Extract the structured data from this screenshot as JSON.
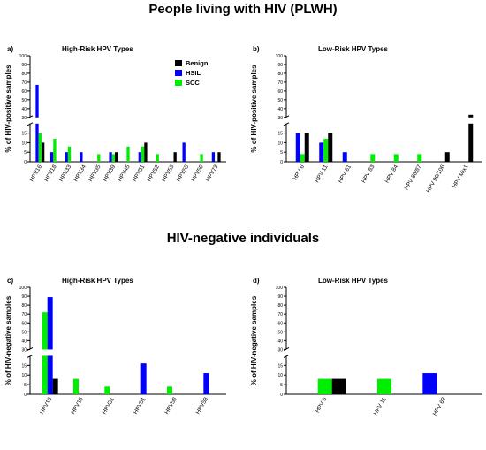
{
  "page": {
    "title_top": "People living with HIV (PLWH)",
    "title_bottom": "HIV-negative individuals"
  },
  "legend": [
    "Benign",
    "HSIL",
    "SCC"
  ],
  "colors": {
    "Benign": "#000000",
    "HSIL": "#0000ff",
    "SCC": "#00ee00"
  },
  "chart_data": [
    {
      "id": "a",
      "type": "bar",
      "panel_label": "a)",
      "title": "High-Risk HPV Types",
      "ylabel": "% of HIV-positive samples",
      "ylim": [
        0,
        100
      ],
      "y_break": [
        20,
        30
      ],
      "y_ticks_lower": [
        0,
        5,
        10,
        15
      ],
      "y_ticks_upper": [
        30,
        40,
        50,
        60,
        70,
        80,
        90,
        100
      ],
      "legend_position": "top-right",
      "categories": [
        "HPV16",
        "HPV18",
        "HPV33",
        "HPV34",
        "HPV35",
        "HPV39",
        "HPV45",
        "HPV51",
        "HPV52",
        "HPV53",
        "HPV58",
        "HPV59",
        "HPV73"
      ],
      "series": [
        {
          "name": "Benign",
          "values": [
            10,
            0,
            0,
            0,
            0,
            5,
            0,
            10,
            0,
            5,
            0,
            0,
            5
          ]
        },
        {
          "name": "HSIL",
          "values": [
            67,
            5,
            5,
            5,
            0,
            5,
            0,
            5,
            0,
            0,
            10,
            0,
            5
          ]
        },
        {
          "name": "SCC",
          "values": [
            15,
            12,
            8,
            0,
            4,
            4,
            8,
            8,
            4,
            0,
            0,
            4,
            0
          ]
        }
      ]
    },
    {
      "id": "b",
      "type": "bar",
      "panel_label": "b)",
      "title": "Low-Risk HPV Types",
      "ylabel": "% of HIV-positive samples",
      "ylim": [
        0,
        100
      ],
      "y_break": [
        20,
        30
      ],
      "y_ticks_lower": [
        0,
        5,
        10,
        15
      ],
      "y_ticks_upper": [
        30,
        40,
        50,
        60,
        70,
        80,
        90,
        100
      ],
      "categories": [
        "HPV 6",
        "HPV 11",
        "HPV 61",
        "HPV 83",
        "HPV 84",
        "HPV 86/87",
        "HPV 90/106",
        "HPV Mix1"
      ],
      "series": [
        {
          "name": "Benign",
          "values": [
            15,
            15,
            0,
            0,
            0,
            0,
            5,
            33
          ]
        },
        {
          "name": "HSIL",
          "values": [
            15,
            10,
            5,
            0,
            0,
            0,
            0,
            0
          ]
        },
        {
          "name": "SCC",
          "values": [
            4,
            12,
            0,
            4,
            4,
            4,
            0,
            0
          ]
        }
      ]
    },
    {
      "id": "c",
      "type": "bar",
      "panel_label": "c)",
      "title": "High-Risk  HPV Types",
      "ylabel": "% of HIV-negative samples",
      "ylim": [
        0,
        100
      ],
      "y_break": [
        20,
        30
      ],
      "y_ticks_lower": [
        0,
        5,
        10,
        15
      ],
      "y_ticks_upper": [
        30,
        40,
        50,
        60,
        70,
        80,
        90,
        100
      ],
      "categories": [
        "HPV16",
        "HPV18",
        "HPV31",
        "HPV51",
        "HPV58",
        "HPV53"
      ],
      "series": [
        {
          "name": "Benign",
          "values": [
            8,
            0,
            0,
            0,
            0,
            0
          ]
        },
        {
          "name": "HSIL",
          "values": [
            89,
            0,
            0,
            16,
            0,
            11
          ]
        },
        {
          "name": "SCC",
          "values": [
            72,
            8,
            4,
            0,
            4,
            0
          ]
        }
      ],
      "order": [
        "SCC",
        "HSIL",
        "Benign"
      ]
    },
    {
      "id": "d",
      "type": "bar",
      "panel_label": "d)",
      "title": "Low-Risk HPV Types",
      "ylabel": "% of HIV-negative samples",
      "ylim": [
        0,
        100
      ],
      "y_break": [
        20,
        30
      ],
      "y_ticks_lower": [
        0,
        5,
        10,
        15
      ],
      "y_ticks_upper": [
        30,
        40,
        50,
        60,
        70,
        80,
        90,
        100
      ],
      "categories": [
        "HPV 6",
        "HPV 11",
        "HPV 62"
      ],
      "series": [
        {
          "name": "Benign",
          "values": [
            8,
            0,
            0
          ]
        },
        {
          "name": "HSIL",
          "values": [
            0,
            0,
            11
          ]
        },
        {
          "name": "SCC",
          "values": [
            8,
            8,
            0
          ]
        }
      ]
    }
  ]
}
